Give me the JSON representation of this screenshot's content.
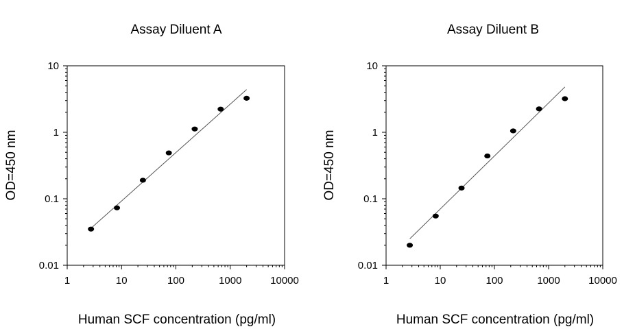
{
  "chart_data": [
    {
      "type": "scatter",
      "title": "Assay Diluent A",
      "xlabel": "Human SCF concentration (pg/ml)",
      "ylabel": "OD=450 nm",
      "x_scale": "log",
      "y_scale": "log",
      "xlim": [
        1,
        10000
      ],
      "ylim": [
        0.01,
        10
      ],
      "x_ticks": [
        "1",
        "10",
        "100",
        "1000",
        "10000"
      ],
      "y_ticks": [
        "0.01",
        "0.1",
        "1",
        "10"
      ],
      "grid": false,
      "series": [
        {
          "points": [
            {
              "x": 2.74,
              "y": 0.035
            },
            {
              "x": 8.23,
              "y": 0.073
            },
            {
              "x": 24.7,
              "y": 0.19
            },
            {
              "x": 74.1,
              "y": 0.49
            },
            {
              "x": 222,
              "y": 1.12
            },
            {
              "x": 667,
              "y": 2.23
            },
            {
              "x": 2000,
              "y": 3.25
            }
          ]
        }
      ],
      "fit_line": {
        "x": [
          2.74,
          2000
        ],
        "y": [
          0.036,
          4.4
        ]
      }
    },
    {
      "type": "scatter",
      "title": "Assay Diluent B",
      "xlabel": "Human SCF concentration (pg/ml)",
      "ylabel": "OD=450 nm",
      "x_scale": "log",
      "y_scale": "log",
      "xlim": [
        1,
        10000
      ],
      "ylim": [
        0.01,
        10
      ],
      "x_ticks": [
        "1",
        "10",
        "100",
        "1000",
        "10000"
      ],
      "y_ticks": [
        "0.01",
        "0.1",
        "1",
        "10"
      ],
      "grid": false,
      "series": [
        {
          "points": [
            {
              "x": 2.74,
              "y": 0.02
            },
            {
              "x": 8.23,
              "y": 0.055
            },
            {
              "x": 24.7,
              "y": 0.145
            },
            {
              "x": 74.1,
              "y": 0.44
            },
            {
              "x": 222,
              "y": 1.05
            },
            {
              "x": 667,
              "y": 2.25
            },
            {
              "x": 2000,
              "y": 3.2
            }
          ]
        }
      ],
      "fit_line": {
        "x": [
          2.74,
          2000
        ],
        "y": [
          0.025,
          4.8
        ]
      }
    }
  ]
}
